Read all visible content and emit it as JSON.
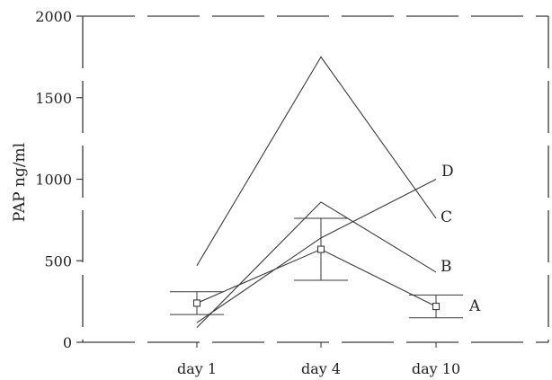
{
  "chart_data": {
    "type": "line",
    "title": "",
    "xlabel": "",
    "ylabel": "PAP ng/ml",
    "categories": [
      "day 1",
      "day 4",
      "day 10"
    ],
    "ylim": [
      0,
      2000
    ],
    "yticks": [
      0,
      500,
      1000,
      1500,
      2000
    ],
    "grid": false,
    "series": [
      {
        "name": "A",
        "values": [
          240,
          570,
          220
        ],
        "marker": "square",
        "error": [
          70,
          190,
          70
        ],
        "color": "#3a3a3a"
      },
      {
        "name": "B",
        "values": [
          90,
          860,
          430
        ],
        "marker": "none",
        "color": "#3a3a3a"
      },
      {
        "name": "C",
        "values": [
          470,
          1750,
          760
        ],
        "marker": "none",
        "color": "#3a3a3a"
      },
      {
        "name": "D",
        "values": [
          120,
          640,
          1000
        ],
        "marker": "none",
        "color": "#3a3a3a"
      }
    ]
  }
}
